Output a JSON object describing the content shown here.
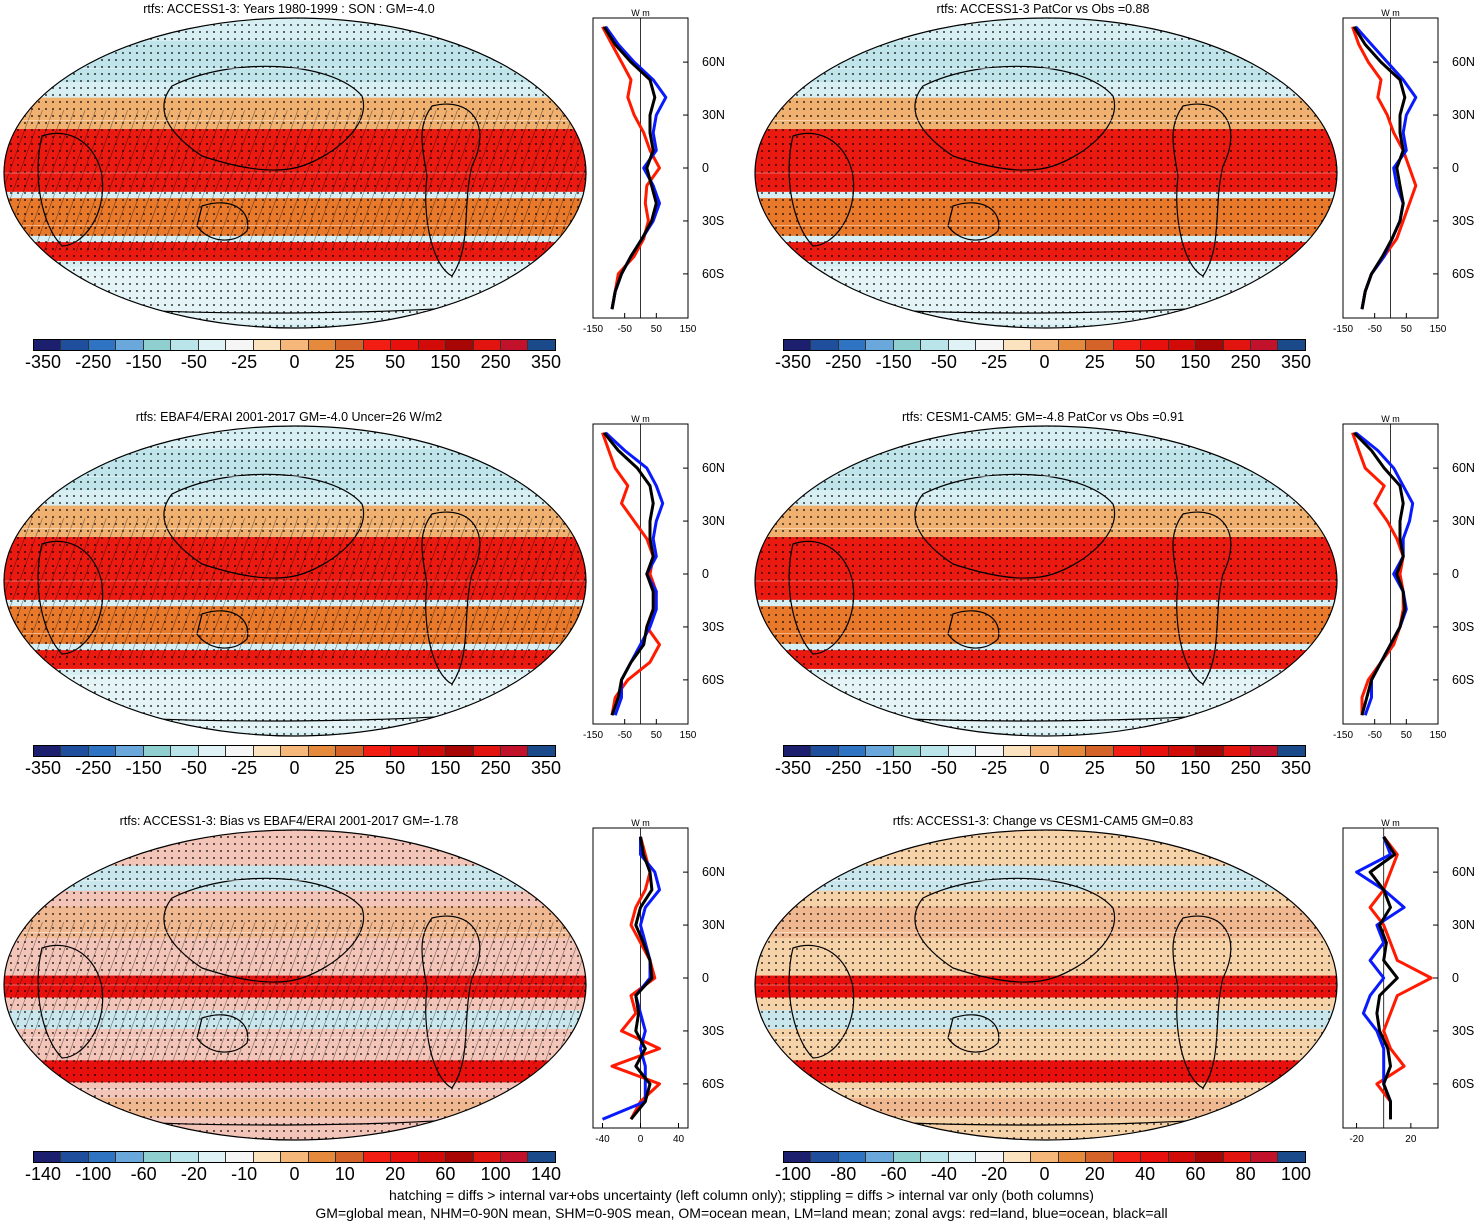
{
  "palette": {
    "diverging": [
      "#1b1f6e",
      "#1f4f9c",
      "#2f74c3",
      "#6aa8dc",
      "#8fcfcf",
      "#b9e4ea",
      "#dff3f6",
      "#f5f5f5",
      "#fbe3c0",
      "#f5b77a",
      "#e58a3d",
      "#d4632a",
      "#f21e13",
      "#e8100c",
      "#d20a08",
      "#a80505",
      "#e1140f",
      "#c2112b",
      "#1a4a8a"
    ],
    "land_outline": "#000000",
    "zonal_land": "#ff1a00",
    "zonal_ocean": "#0a1aff",
    "zonal_all": "#000000"
  },
  "panels": [
    {
      "id": "p1",
      "title": "rtfs: ACCESS1-3: Years 1980-1999 : SON : GM=-4.0",
      "cbar_labels": [
        "-350",
        "-250",
        "-150",
        "-50",
        "-25",
        "0",
        "25",
        "50",
        "150",
        "250",
        "350"
      ],
      "zonal_unit": "W m",
      "zonal_ticks": [
        "-150",
        "-50",
        "50",
        "150"
      ],
      "lat_labels": [
        "60N",
        "30N",
        "0",
        "30S",
        "60S"
      ],
      "hatching": true
    },
    {
      "id": "p2",
      "title": "rtfs: ACCESS1-3 PatCor vs Obs =0.88",
      "cbar_labels": [
        "-350",
        "-250",
        "-150",
        "-50",
        "-25",
        "0",
        "25",
        "50",
        "150",
        "250",
        "350"
      ],
      "zonal_unit": "W m",
      "zonal_ticks": [
        "-150",
        "-50",
        "50",
        "150"
      ],
      "lat_labels": [
        "60N",
        "30N",
        "0",
        "30S",
        "60S"
      ],
      "hatching": false
    },
    {
      "id": "p3",
      "title": "rtfs: EBAF4/ERAI 2001-2017 GM=-4.0 Uncer=26 W/m2",
      "cbar_labels": [
        "-350",
        "-250",
        "-150",
        "-50",
        "-25",
        "0",
        "25",
        "50",
        "150",
        "250",
        "350"
      ],
      "zonal_unit": "W m",
      "zonal_ticks": [
        "-150",
        "-50",
        "50",
        "150"
      ],
      "lat_labels": [
        "60N",
        "30N",
        "0",
        "30S",
        "60S"
      ],
      "hatching": true
    },
    {
      "id": "p4",
      "title": "rtfs: CESM1-CAM5: GM=-4.8 PatCor vs Obs =0.91",
      "cbar_labels": [
        "-350",
        "-250",
        "-150",
        "-50",
        "-25",
        "0",
        "25",
        "50",
        "150",
        "250",
        "350"
      ],
      "zonal_unit": "W m",
      "zonal_ticks": [
        "-150",
        "-50",
        "50",
        "150"
      ],
      "lat_labels": [
        "60N",
        "30N",
        "0",
        "30S",
        "60S"
      ],
      "hatching": false
    },
    {
      "id": "p5",
      "title": "rtfs: ACCESS1-3: Bias vs EBAF4/ERAI 2001-2017  GM=-1.78",
      "cbar_labels": [
        "-140",
        "-100",
        "-60",
        "-20",
        "-10",
        "0",
        "10",
        "20",
        "60",
        "100",
        "140"
      ],
      "zonal_unit": "W m",
      "zonal_ticks": [
        "-40",
        "0",
        "40"
      ],
      "lat_labels": [
        "60N",
        "30N",
        "0",
        "30S",
        "60S"
      ],
      "hatching": true
    },
    {
      "id": "p6",
      "title": "rtfs: ACCESS1-3: Change vs CESM1-CAM5 GM=0.83",
      "cbar_labels": [
        "-100",
        "-80",
        "-60",
        "-40",
        "-20",
        "0",
        "20",
        "40",
        "60",
        "80",
        "100"
      ],
      "zonal_unit": "W m",
      "zonal_ticks": [
        "-20",
        "20"
      ],
      "lat_labels": [
        "60N",
        "30N",
        "0",
        "30S",
        "60S"
      ],
      "hatching": false
    }
  ],
  "footer": {
    "line1": "hatching = diffs > internal var+obs uncertainty (left column only); stippling = diffs > internal var only (both columns)",
    "line2": "GM=global mean, NHM=0-90N mean, SHM=0-90S mean, OM=ocean mean, LM=land mean; zonal avgs: red=land, blue=ocean, black=all"
  },
  "chart_data": [
    {
      "type": "line",
      "title": "rtfs: ACCESS1-3: Years 1980-1999 : SON : GM=-4.0",
      "x_axis": {
        "ticks": [
          -150,
          -50,
          50,
          150
        ],
        "range": [
          -150,
          150
        ]
      },
      "lat": [
        80,
        70,
        60,
        50,
        40,
        30,
        20,
        10,
        0,
        -10,
        -20,
        -30,
        -40,
        -50,
        -60,
        -70,
        -80
      ],
      "series": [
        {
          "name": "red=land",
          "values": [
            -120,
            -90,
            -60,
            -30,
            -40,
            -20,
            10,
            30,
            60,
            20,
            15,
            25,
            10,
            -20,
            -70,
            -80,
            -90
          ]
        },
        {
          "name": "blue=ocean",
          "values": [
            -110,
            -70,
            -20,
            40,
            80,
            50,
            40,
            50,
            10,
            40,
            60,
            40,
            5,
            -30,
            -60,
            -80,
            -90
          ]
        },
        {
          "name": "black=all",
          "values": [
            -115,
            -80,
            -30,
            30,
            45,
            30,
            30,
            40,
            20,
            35,
            50,
            35,
            5,
            -30,
            -60,
            -80,
            -90
          ]
        }
      ]
    },
    {
      "type": "line",
      "title": "rtfs: ACCESS1-3 PatCor vs Obs =0.88",
      "x_axis": {
        "ticks": [
          -150,
          -50,
          50,
          150
        ],
        "range": [
          -150,
          150
        ]
      },
      "lat": [
        80,
        70,
        60,
        50,
        40,
        30,
        20,
        10,
        0,
        -10,
        -20,
        -30,
        -40,
        -50,
        -60,
        -70,
        -80
      ],
      "series": [
        {
          "name": "red=land",
          "values": [
            -120,
            -100,
            -70,
            -30,
            -40,
            -10,
            10,
            40,
            60,
            80,
            60,
            40,
            20,
            -20,
            -60,
            -80,
            -90
          ]
        },
        {
          "name": "blue=ocean",
          "values": [
            -110,
            -60,
            -10,
            40,
            80,
            50,
            40,
            50,
            10,
            20,
            40,
            30,
            5,
            -20,
            -60,
            -80,
            -90
          ]
        },
        {
          "name": "black=all",
          "values": [
            -115,
            -80,
            -30,
            30,
            45,
            30,
            30,
            40,
            20,
            30,
            40,
            30,
            5,
            -25,
            -60,
            -80,
            -90
          ]
        }
      ]
    },
    {
      "type": "line",
      "title": "rtfs: EBAF4/ERAI 2001-2017 GM=-4.0 Uncer=26 W/m2",
      "x_axis": {
        "ticks": [
          -150,
          -50,
          50,
          150
        ],
        "range": [
          -150,
          150
        ]
      },
      "lat": [
        80,
        70,
        60,
        50,
        40,
        30,
        20,
        10,
        0,
        -10,
        -20,
        -30,
        -40,
        -50,
        -60,
        -70,
        -80
      ],
      "series": [
        {
          "name": "red=land",
          "values": [
            -120,
            -100,
            -80,
            -40,
            -60,
            -20,
            20,
            40,
            30,
            50,
            40,
            20,
            60,
            30,
            -40,
            -80,
            -90
          ]
        },
        {
          "name": "blue=ocean",
          "values": [
            -110,
            -50,
            20,
            50,
            70,
            50,
            40,
            50,
            20,
            50,
            50,
            30,
            0,
            -30,
            -60,
            -60,
            -80
          ]
        },
        {
          "name": "black=all",
          "values": [
            -115,
            -70,
            -10,
            30,
            40,
            30,
            30,
            40,
            20,
            40,
            40,
            20,
            10,
            -30,
            -60,
            -70,
            -90
          ]
        }
      ]
    },
    {
      "type": "line",
      "title": "rtfs: CESM1-CAM5: GM=-4.8 PatCor vs Obs =0.91",
      "x_axis": {
        "ticks": [
          -150,
          -50,
          50,
          150
        ],
        "range": [
          -150,
          150
        ]
      },
      "lat": [
        80,
        70,
        60,
        50,
        40,
        30,
        20,
        10,
        0,
        -10,
        -20,
        -30,
        -40,
        -50,
        -60,
        -70,
        -80
      ],
      "series": [
        {
          "name": "red=land",
          "values": [
            -120,
            -100,
            -80,
            -20,
            -50,
            -10,
            20,
            40,
            30,
            40,
            40,
            30,
            10,
            -30,
            -70,
            -90,
            -90
          ]
        },
        {
          "name": "blue=ocean",
          "values": [
            -110,
            -40,
            10,
            40,
            70,
            60,
            40,
            40,
            10,
            40,
            50,
            30,
            0,
            -30,
            -60,
            -60,
            -80
          ]
        },
        {
          "name": "black=all",
          "values": [
            -115,
            -60,
            -20,
            30,
            40,
            30,
            30,
            40,
            20,
            40,
            45,
            30,
            0,
            -30,
            -60,
            -75,
            -90
          ]
        }
      ]
    },
    {
      "type": "line",
      "title": "rtfs: ACCESS1-3: Bias vs EBAF4/ERAI 2001-2017  GM=-1.78",
      "x_axis": {
        "ticks": [
          -40,
          0,
          40
        ],
        "range": [
          -50,
          50
        ]
      },
      "lat": [
        80,
        70,
        60,
        50,
        40,
        30,
        20,
        10,
        0,
        -10,
        -20,
        -30,
        -40,
        -50,
        -60,
        -70,
        -80
      ],
      "series": [
        {
          "name": "red=land",
          "values": [
            0,
            5,
            10,
            5,
            -5,
            -10,
            0,
            10,
            15,
            -10,
            -5,
            -20,
            20,
            -30,
            20,
            0,
            -10
          ]
        },
        {
          "name": "blue=ocean",
          "values": [
            0,
            0,
            15,
            20,
            5,
            0,
            5,
            10,
            10,
            -5,
            0,
            5,
            0,
            5,
            5,
            5,
            -40
          ]
        },
        {
          "name": "black=all",
          "values": [
            0,
            3,
            10,
            12,
            0,
            -5,
            3,
            10,
            12,
            -5,
            -2,
            -5,
            5,
            -5,
            10,
            5,
            -10
          ]
        }
      ]
    },
    {
      "type": "line",
      "title": "rtfs: ACCESS1-3: Change vs CESM1-CAM5 GM=0.83",
      "x_axis": {
        "ticks": [
          -20,
          20
        ],
        "range": [
          -30,
          40
        ]
      },
      "lat": [
        80,
        70,
        60,
        50,
        40,
        30,
        20,
        10,
        0,
        -10,
        -20,
        -30,
        -40,
        -50,
        -60,
        -70,
        -80
      ],
      "series": [
        {
          "name": "red=land",
          "values": [
            0,
            10,
            5,
            0,
            -10,
            0,
            5,
            10,
            35,
            10,
            5,
            0,
            5,
            15,
            -5,
            5,
            5
          ]
        },
        {
          "name": "blue=ocean",
          "values": [
            0,
            5,
            -20,
            0,
            15,
            -5,
            0,
            -10,
            0,
            -10,
            -15,
            -5,
            0,
            0,
            0,
            5,
            5
          ]
        },
        {
          "name": "black=all",
          "values": [
            0,
            8,
            -10,
            0,
            5,
            -3,
            2,
            0,
            10,
            -3,
            -5,
            -3,
            3,
            5,
            0,
            5,
            5
          ]
        }
      ]
    }
  ]
}
